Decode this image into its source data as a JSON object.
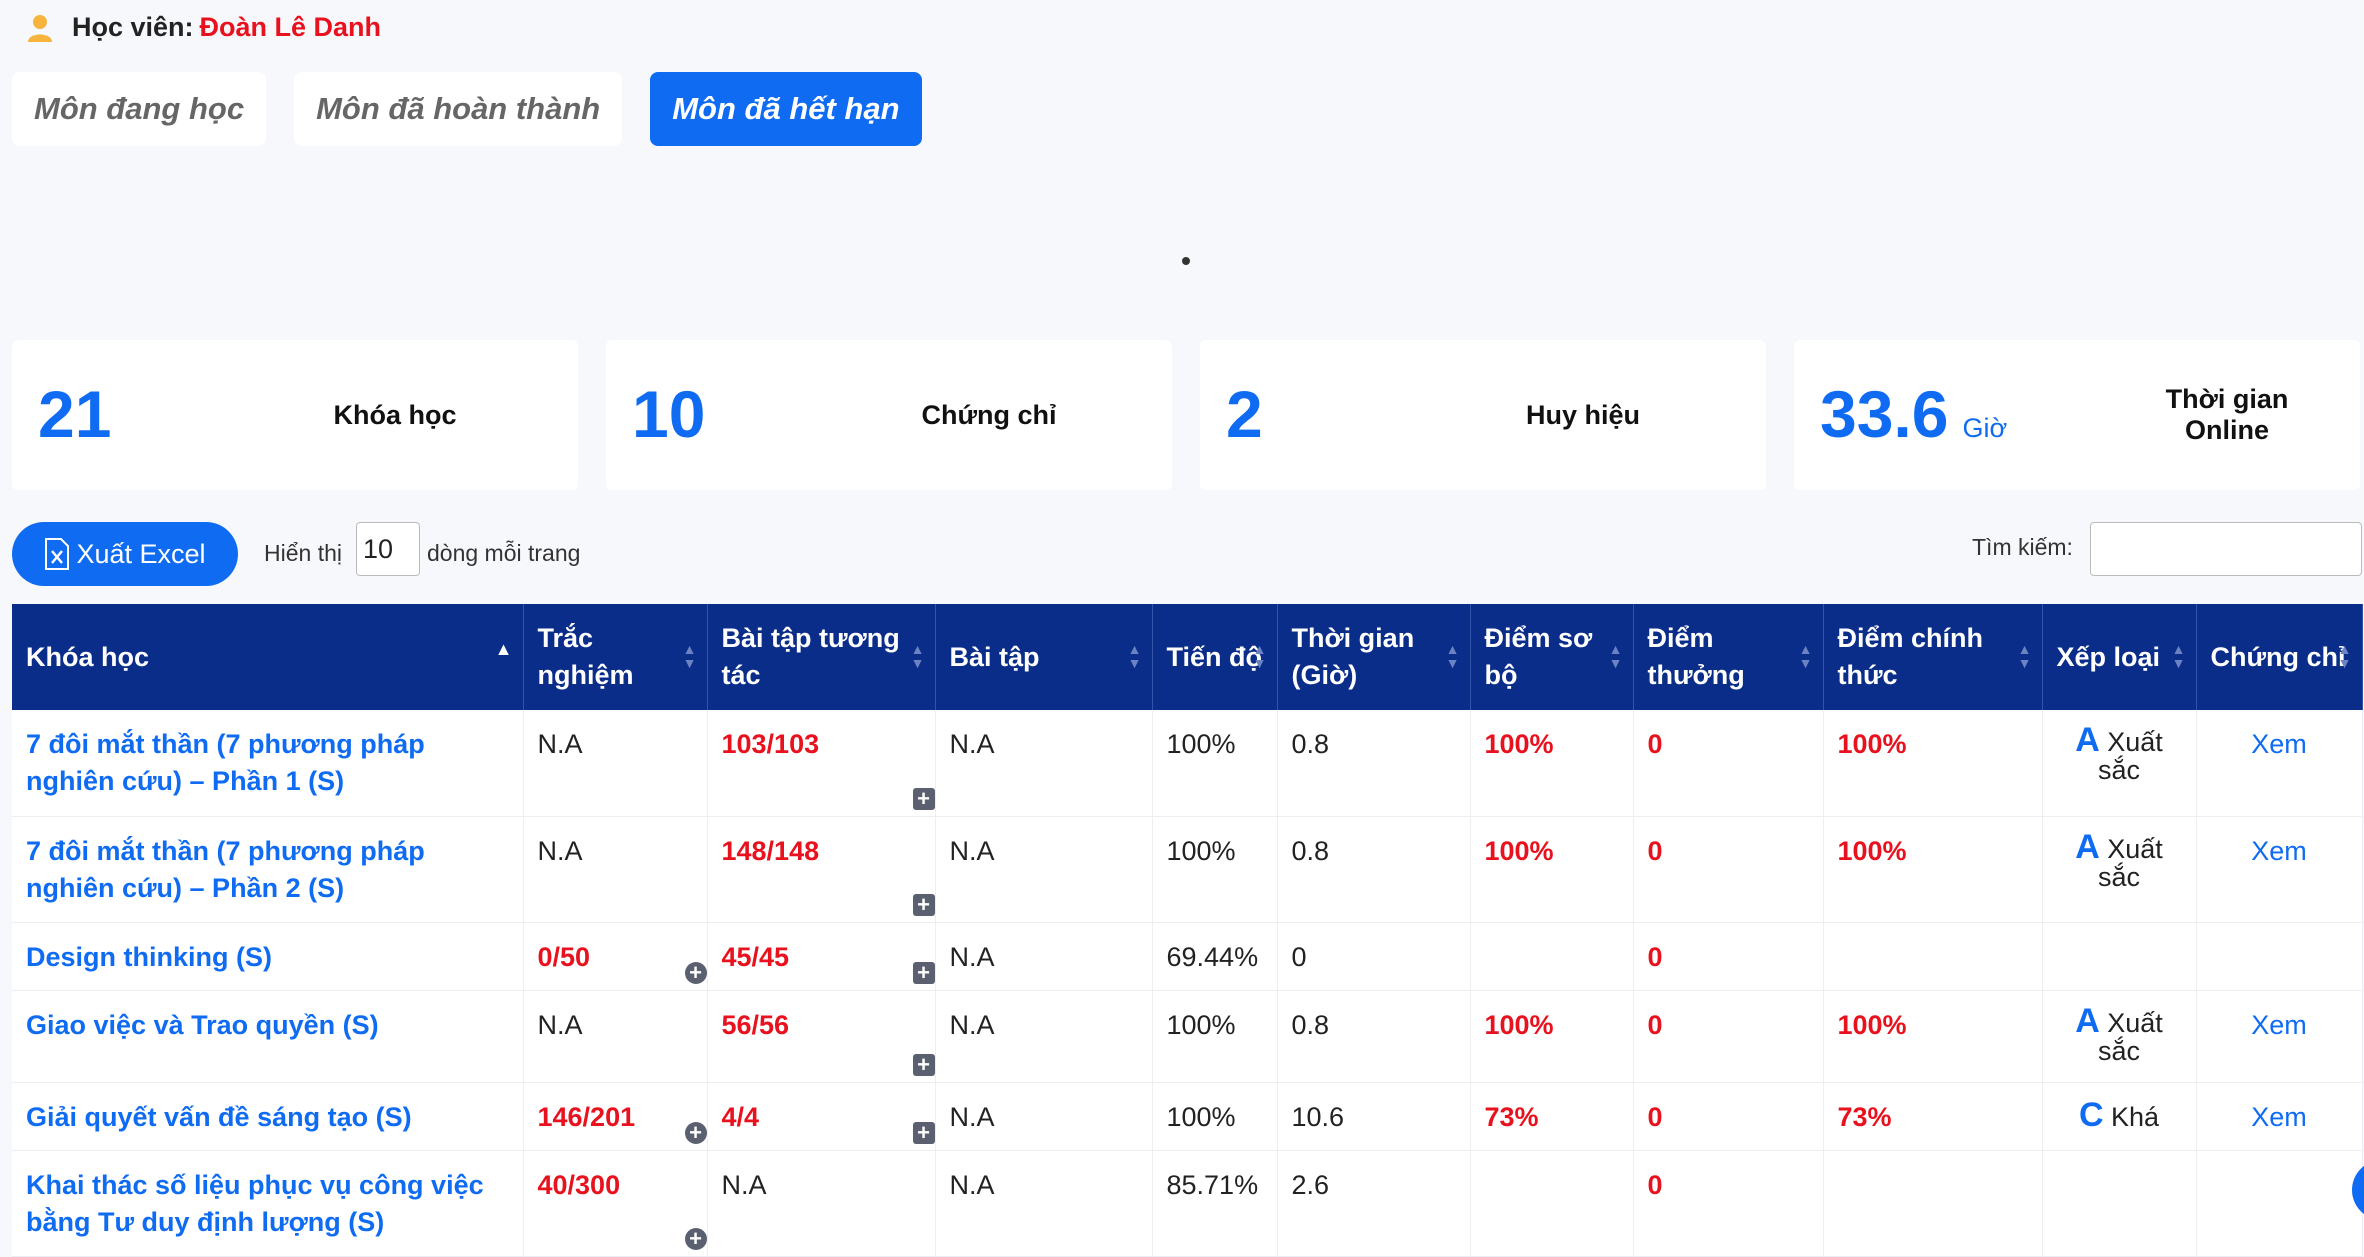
{
  "student": {
    "label": "Học viên:",
    "name": "Đoàn Lê Danh"
  },
  "tabs": [
    {
      "label": "Môn đang học",
      "active": false
    },
    {
      "label": "Môn đã hoàn thành",
      "active": false
    },
    {
      "label": "Môn đã hết hạn",
      "active": true
    }
  ],
  "stats": [
    {
      "value": "21",
      "unit": "",
      "label": "Khóa học"
    },
    {
      "value": "10",
      "unit": "",
      "label": "Chứng chỉ"
    },
    {
      "value": "2",
      "unit": "",
      "label": "Huy hiệu"
    },
    {
      "value": "33.6",
      "unit": "Giờ",
      "label": "Thời gian Online"
    }
  ],
  "toolbar": {
    "excel_label": "Xuất Excel",
    "show_label": "Hiển thị",
    "page_size": "10",
    "rows_label": "dòng mỗi trang",
    "search_label": "Tìm kiếm:",
    "search_value": ""
  },
  "table": {
    "headers": [
      "Khóa học",
      "Trắc nghiệm",
      "Bài tập tương tác",
      "Bài tập",
      "Tiến độ",
      "Thời gian (Giờ)",
      "Điểm sơ bộ",
      "Điểm thưởng",
      "Điểm chính thức",
      "Xếp loại",
      "Chứng chỉ"
    ],
    "rows": [
      {
        "course": "7 đôi mắt thần (7 phương pháp nghiên cứu) – Phần 1 (S)",
        "quiz": "N.A",
        "interactive": "103/103",
        "exercise": "N.A",
        "progress": "100%",
        "time": "0.8",
        "prelim": "100%",
        "bonus": "0",
        "official": "100%",
        "rank_letter": "A",
        "rank_text": "Xuất sắc",
        "cert": "Xem"
      },
      {
        "course": "7 đôi mắt thần (7 phương pháp nghiên cứu) – Phần 2 (S)",
        "quiz": "N.A",
        "interactive": "148/148",
        "exercise": "N.A",
        "progress": "100%",
        "time": "0.8",
        "prelim": "100%",
        "bonus": "0",
        "official": "100%",
        "rank_letter": "A",
        "rank_text": "Xuất sắc",
        "cert": "Xem"
      },
      {
        "course": "Design thinking (S)",
        "quiz": "0/50",
        "interactive": "45/45",
        "exercise": "N.A",
        "progress": "69.44%",
        "time": "0",
        "prelim": "",
        "bonus": "0",
        "official": "",
        "rank_letter": "",
        "rank_text": "",
        "cert": ""
      },
      {
        "course": "Giao việc và Trao quyền (S)",
        "quiz": "N.A",
        "interactive": "56/56",
        "exercise": "N.A",
        "progress": "100%",
        "time": "0.8",
        "prelim": "100%",
        "bonus": "0",
        "official": "100%",
        "rank_letter": "A",
        "rank_text": "Xuất sắc",
        "cert": "Xem"
      },
      {
        "course": "Giải quyết vấn đề sáng tạo (S)",
        "quiz": "146/201",
        "interactive": "4/4",
        "exercise": "N.A",
        "progress": "100%",
        "time": "10.6",
        "prelim": "73%",
        "bonus": "0",
        "official": "73%",
        "rank_letter": "C",
        "rank_text": "Khá",
        "cert": "Xem"
      },
      {
        "course": "Khai thác số liệu phục vụ công việc bằng Tư duy định lượng (S)",
        "quiz": "40/300",
        "interactive": "N.A",
        "exercise": "N.A",
        "progress": "85.71%",
        "time": "2.6",
        "prelim": "",
        "bonus": "0",
        "official": "",
        "rank_letter": "",
        "rank_text": "",
        "cert": ""
      }
    ]
  }
}
